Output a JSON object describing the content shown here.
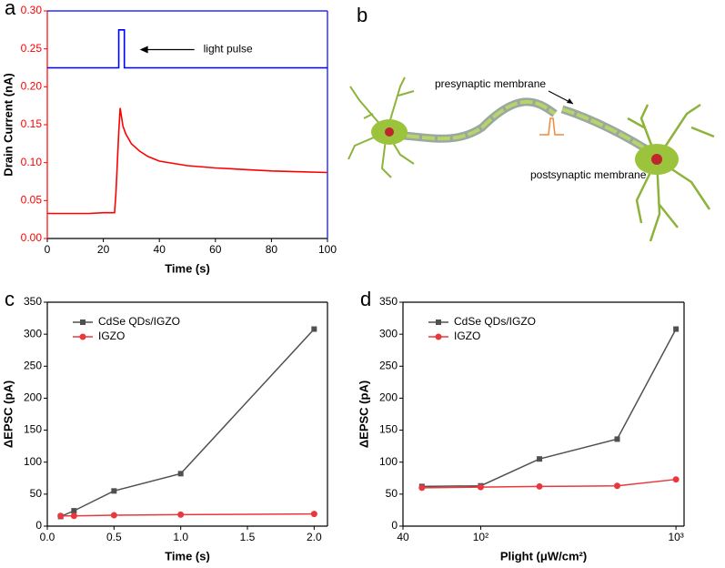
{
  "chart_data": [
    {
      "type": "line",
      "panel_label": "a",
      "x_label": "Time (s)",
      "y_label": "Drain Current (nA)",
      "xlim": [
        0,
        100
      ],
      "xticks": [
        0,
        20,
        40,
        60,
        80,
        100
      ],
      "ylim": [
        0,
        0.3
      ],
      "yticks": [
        {
          "value": 0,
          "label": "0.00"
        },
        {
          "value": 0.05,
          "label": "0.05"
        },
        {
          "value": 0.1,
          "label": "0.10"
        },
        {
          "value": 0.15,
          "label": "0.15"
        },
        {
          "value": 0.2,
          "label": "0.20"
        },
        {
          "value": 0.25,
          "label": "0.25"
        },
        {
          "value": 0.3,
          "label": "0.30"
        }
      ],
      "y_axis_color": "#ff0000",
      "right_axis_color": "#0000ff",
      "annotation": "light pulse",
      "markers": false,
      "legend": false,
      "series": [
        {
          "color": "#ff0000",
          "x": [
            0,
            5,
            10,
            15,
            20,
            24,
            24.5,
            25,
            25.5,
            26,
            26.5,
            27,
            28,
            30,
            33,
            36,
            40,
            45,
            50,
            60,
            70,
            80,
            90,
            100
          ],
          "values": [
            0.033,
            0.033,
            0.033,
            0.033,
            0.034,
            0.034,
            0.06,
            0.1,
            0.14,
            0.172,
            0.16,
            0.148,
            0.138,
            0.125,
            0.115,
            0.108,
            0.102,
            0.099,
            0.096,
            0.093,
            0.091,
            0.089,
            0.088,
            0.087
          ]
        },
        {
          "color": "#0000ff",
          "x": [
            0,
            25.5,
            25.5,
            27.5,
            27.5,
            100
          ],
          "values": [
            0.225,
            0.225,
            0.275,
            0.275,
            0.225,
            0.225
          ]
        }
      ]
    },
    {
      "type": "line",
      "panel_label": "c",
      "x_label": "Time (s)",
      "y_label": "ΔEPSC (pA)",
      "xlim": [
        0,
        2.1
      ],
      "xticks": [
        {
          "value": 0,
          "label": "0.0"
        },
        {
          "value": 0.5,
          "label": "0.5"
        },
        {
          "value": 1,
          "label": "1.0"
        },
        {
          "value": 1.5,
          "label": "1.5"
        },
        {
          "value": 2,
          "label": "2.0"
        }
      ],
      "ylim": [
        0,
        350
      ],
      "yticks": [
        0,
        50,
        100,
        150,
        200,
        250,
        300,
        350
      ],
      "markers": true,
      "legend": "upper left",
      "x": [
        0.1,
        0.2,
        0.5,
        1,
        2
      ],
      "series": [
        {
          "name": "CdSe QDs/IGZO",
          "color": "#505050",
          "marker": "square",
          "values": [
            15,
            24,
            55,
            82,
            308
          ]
        },
        {
          "name": "IGZO",
          "color": "#e8383d",
          "marker": "circle",
          "values": [
            16,
            16,
            17,
            18,
            19
          ]
        }
      ]
    },
    {
      "type": "line",
      "panel_label": "d",
      "x_label": "Plight (μW/cm²)",
      "y_label": "ΔEPSC (pA)",
      "x_log": true,
      "xlim": [
        40,
        1100
      ],
      "xticks": [
        40,
        {
          "value": 100,
          "label": "10²"
        },
        {
          "value": 1000,
          "label": "10³"
        }
      ],
      "ylim": [
        0,
        350
      ],
      "yticks": [
        0,
        50,
        100,
        150,
        200,
        250,
        300,
        350
      ],
      "markers": true,
      "legend": "upper left",
      "x": [
        50,
        100,
        200,
        500,
        1000
      ],
      "series": [
        {
          "name": "CdSe QDs/IGZO",
          "color": "#505050",
          "marker": "square",
          "values": [
            62,
            63,
            105,
            136,
            308
          ]
        },
        {
          "name": "IGZO",
          "color": "#e8383d",
          "marker": "circle",
          "values": [
            60,
            61,
            62,
            63,
            73
          ]
        }
      ]
    }
  ],
  "illustration": {
    "panel_label": "b",
    "labels": [
      "presynaptic membrane",
      "postsynaptic membrane"
    ]
  }
}
